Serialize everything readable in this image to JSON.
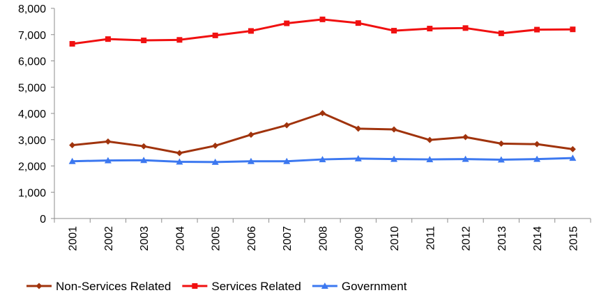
{
  "chart_data": {
    "type": "line",
    "title": "",
    "xlabel": "",
    "ylabel": "",
    "x": [
      "2001",
      "2002",
      "2003",
      "2004",
      "2005",
      "2006",
      "2007",
      "2008",
      "2009",
      "2010",
      "2011",
      "2012",
      "2013",
      "2014",
      "2015"
    ],
    "ylim": [
      0,
      8000
    ],
    "yticks": [
      "0",
      "1,000",
      "2,000",
      "3,000",
      "4,000",
      "5,000",
      "6,000",
      "7,000",
      "8,000"
    ],
    "grid": false,
    "legend_position": "bottom",
    "series": [
      {
        "name": "Non-Services Related",
        "color": "#A0330C",
        "marker": "diamond",
        "values": [
          2790,
          2930,
          2750,
          2490,
          2770,
          3190,
          3550,
          4010,
          3420,
          3390,
          2990,
          3100,
          2850,
          2830,
          2640
        ]
      },
      {
        "name": "Services Related",
        "color": "#F01010",
        "marker": "square",
        "values": [
          6650,
          6830,
          6780,
          6800,
          6970,
          7140,
          7430,
          7580,
          7440,
          7150,
          7230,
          7250,
          7050,
          7190,
          7200
        ]
      },
      {
        "name": "Government",
        "color": "#3C78F0",
        "marker": "triangle",
        "values": [
          2180,
          2210,
          2220,
          2160,
          2150,
          2180,
          2180,
          2250,
          2280,
          2260,
          2250,
          2260,
          2240,
          2260,
          2300
        ]
      }
    ]
  }
}
